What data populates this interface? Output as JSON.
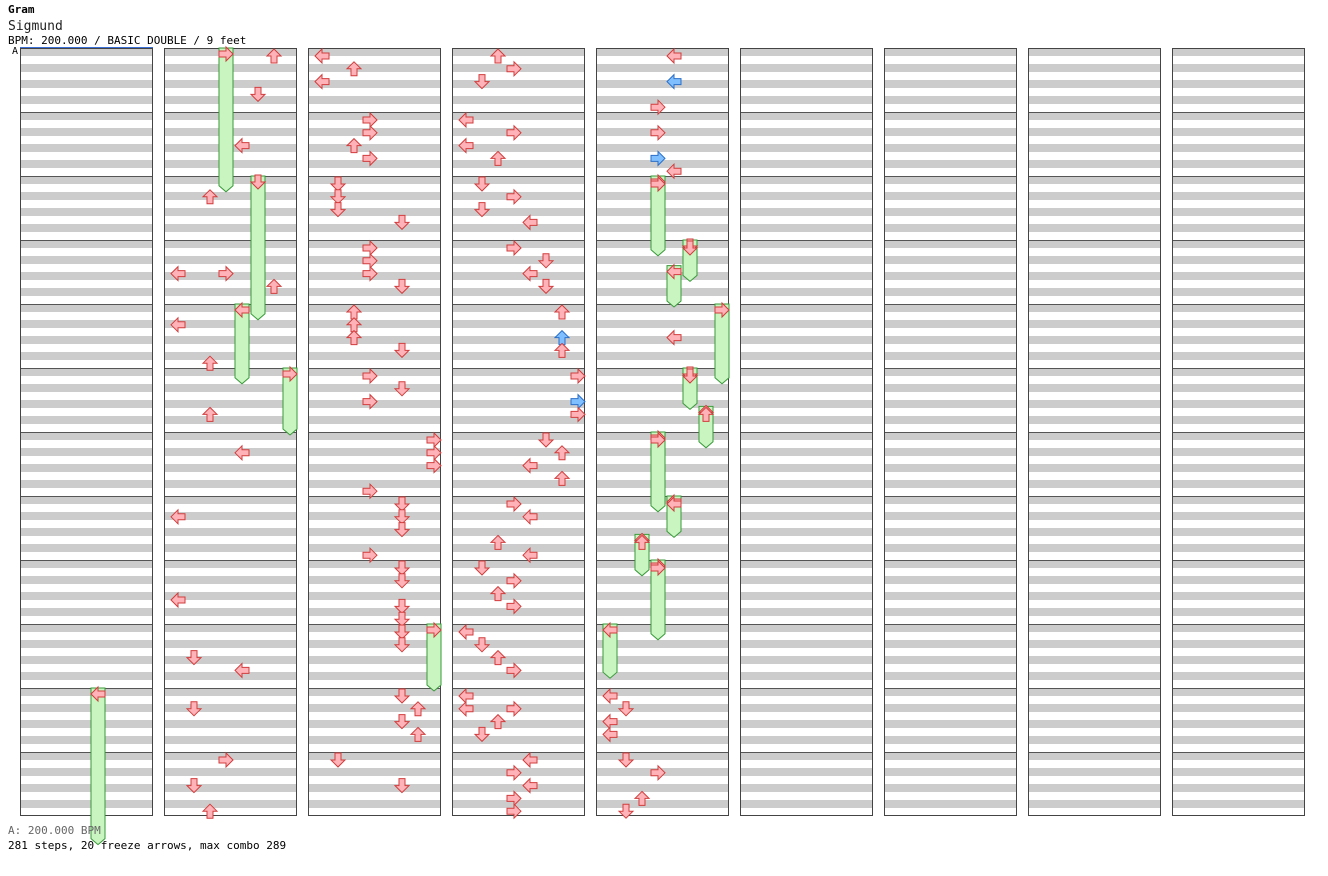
{
  "header": {
    "title": "Gram",
    "artist": "Sigmund",
    "info": "BPM: 200.000 / BASIC DOUBLE / 9 feet",
    "bpm_marker": "A"
  },
  "footer": {
    "bpm_legend": "A: 200.000 BPM",
    "stats": "281 steps, 20 freeze arrows, max combo 289"
  },
  "colors": {
    "stripe_dark": "#cccccc",
    "stripe_light": "#ffffff",
    "arrow_red": "#ffb3b8",
    "arrow_red_stroke": "#d23c3c",
    "arrow_blue": "#80bfff",
    "arrow_blue_stroke": "#2a6fc9",
    "freeze_fill": "#c8f5c0",
    "freeze_stroke": "#3a9a3a",
    "bpm_line": "#3a6fd8"
  },
  "chart_data": {
    "type": "step-chart",
    "mode": "BASIC DOUBLE",
    "bpm": 200,
    "feet": 9,
    "columns": 9,
    "measures_per_column": 12,
    "lanes": [
      "L-left",
      "L-down",
      "L-up",
      "L-right",
      "R-left",
      "R-down",
      "R-up",
      "R-right"
    ],
    "rows_per_measure": 8,
    "notes": [
      [
        1,
        3.4,
        3,
        "red"
      ],
      [
        1,
        7.2,
        0,
        "red"
      ],
      [
        1,
        8.5,
        0,
        "red"
      ],
      [
        1,
        9.4,
        1,
        "red"
      ],
      [
        1,
        9.6,
        4,
        "red"
      ],
      [
        1,
        10.2,
        1,
        "red"
      ],
      [
        1,
        11,
        3,
        "red"
      ],
      [
        1,
        11.4,
        1,
        "red"
      ],
      [
        1,
        11.8,
        2,
        "red"
      ],
      [
        1,
        0,
        6,
        "red"
      ],
      [
        1,
        0.6,
        5,
        "red"
      ],
      [
        1,
        1.4,
        4,
        "red"
      ],
      [
        1,
        2.2,
        2,
        "red"
      ],
      [
        1,
        3.4,
        0,
        "red"
      ],
      [
        1,
        3.6,
        6,
        "red"
      ],
      [
        1,
        4.2,
        0,
        "red"
      ],
      [
        1,
        4.8,
        2,
        "red"
      ],
      [
        1,
        5.6,
        2,
        "red"
      ],
      [
        1,
        6.2,
        4,
        "red"
      ],
      [
        2,
        0,
        0,
        "red"
      ],
      [
        2,
        0.2,
        2,
        "red"
      ],
      [
        2,
        0.4,
        0,
        "red"
      ],
      [
        2,
        1,
        3,
        "red"
      ],
      [
        2,
        1.2,
        3,
        "red"
      ],
      [
        2,
        1.4,
        2,
        "red"
      ],
      [
        2,
        1.6,
        3,
        "red"
      ],
      [
        2,
        2,
        1,
        "red"
      ],
      [
        2,
        2.2,
        1,
        "red"
      ],
      [
        2,
        2.4,
        1,
        "red"
      ],
      [
        2,
        2.6,
        5,
        "red"
      ],
      [
        2,
        3,
        3,
        "red"
      ],
      [
        2,
        3.2,
        3,
        "red"
      ],
      [
        2,
        3.4,
        3,
        "red"
      ],
      [
        2,
        3.6,
        5,
        "red"
      ],
      [
        2,
        4,
        2,
        "red"
      ],
      [
        2,
        4.2,
        2,
        "red"
      ],
      [
        2,
        4.4,
        2,
        "red"
      ],
      [
        2,
        4.6,
        5,
        "red"
      ],
      [
        2,
        5,
        3,
        "red"
      ],
      [
        2,
        5.2,
        5,
        "red"
      ],
      [
        2,
        5.4,
        3,
        "red"
      ],
      [
        2,
        6,
        7,
        "red"
      ],
      [
        2,
        6.2,
        7,
        "red"
      ],
      [
        2,
        6.4,
        7,
        "red"
      ],
      [
        2,
        6.8,
        3,
        "red"
      ],
      [
        2,
        7,
        5,
        "red"
      ],
      [
        2,
        7.2,
        5,
        "red"
      ],
      [
        2,
        7.4,
        5,
        "red"
      ],
      [
        2,
        7.8,
        3,
        "red"
      ],
      [
        2,
        8,
        5,
        "red"
      ],
      [
        2,
        8.2,
        5,
        "red"
      ],
      [
        2,
        8.6,
        5,
        "red"
      ],
      [
        2,
        8.8,
        5,
        "red"
      ],
      [
        2,
        9,
        5,
        "red"
      ],
      [
        2,
        9.2,
        5,
        "red"
      ],
      [
        2,
        10,
        5,
        "red"
      ],
      [
        2,
        10.2,
        6,
        "red"
      ],
      [
        2,
        10.4,
        5,
        "red"
      ],
      [
        2,
        10.6,
        6,
        "red"
      ],
      [
        2,
        11,
        1,
        "red"
      ],
      [
        2,
        11.4,
        5,
        "red"
      ],
      [
        3,
        0,
        2,
        "red"
      ],
      [
        3,
        0.2,
        3,
        "red"
      ],
      [
        3,
        0.4,
        1,
        "red"
      ],
      [
        3,
        1,
        0,
        "red"
      ],
      [
        3,
        1.2,
        3,
        "red"
      ],
      [
        3,
        1.4,
        0,
        "red"
      ],
      [
        3,
        1.6,
        2,
        "red"
      ],
      [
        3,
        2,
        1,
        "red"
      ],
      [
        3,
        2.2,
        3,
        "red"
      ],
      [
        3,
        2.4,
        1,
        "red"
      ],
      [
        3,
        2.6,
        4,
        "red"
      ],
      [
        3,
        3,
        3,
        "red"
      ],
      [
        3,
        3.2,
        5,
        "red"
      ],
      [
        3,
        3.4,
        4,
        "red"
      ],
      [
        3,
        3.6,
        5,
        "red"
      ],
      [
        3,
        4,
        6,
        "red"
      ],
      [
        3,
        4.4,
        6,
        "blue"
      ],
      [
        3,
        4.6,
        6,
        "red"
      ],
      [
        3,
        5,
        7,
        "red"
      ],
      [
        3,
        5.4,
        7,
        "blue"
      ],
      [
        3,
        5.6,
        7,
        "red"
      ],
      [
        3,
        6,
        5,
        "red"
      ],
      [
        3,
        6.2,
        6,
        "red"
      ],
      [
        3,
        6.4,
        4,
        "red"
      ],
      [
        3,
        6.6,
        6,
        "red"
      ],
      [
        3,
        7,
        3,
        "red"
      ],
      [
        3,
        7.2,
        4,
        "red"
      ],
      [
        3,
        7.6,
        2,
        "red"
      ],
      [
        3,
        7.8,
        4,
        "red"
      ],
      [
        3,
        8,
        1,
        "red"
      ],
      [
        3,
        8.2,
        3,
        "red"
      ],
      [
        3,
        8.4,
        2,
        "red"
      ],
      [
        3,
        8.6,
        3,
        "red"
      ],
      [
        3,
        9,
        0,
        "red"
      ],
      [
        3,
        9.2,
        1,
        "red"
      ],
      [
        3,
        9.4,
        2,
        "red"
      ],
      [
        3,
        9.6,
        3,
        "red"
      ],
      [
        3,
        10,
        0,
        "red"
      ],
      [
        3,
        10.2,
        3,
        "red"
      ],
      [
        3,
        10.2,
        0,
        "red"
      ],
      [
        3,
        10.4,
        2,
        "red"
      ],
      [
        3,
        10.6,
        1,
        "red"
      ],
      [
        3,
        11,
        4,
        "red"
      ],
      [
        3,
        11.2,
        3,
        "red"
      ],
      [
        3,
        11.4,
        4,
        "red"
      ],
      [
        3,
        11.6,
        3,
        "red"
      ],
      [
        3,
        11.8,
        3,
        "red"
      ],
      [
        4,
        0,
        4,
        "red"
      ],
      [
        4,
        0.4,
        4,
        "blue"
      ],
      [
        4,
        0.8,
        3,
        "red"
      ],
      [
        4,
        1.2,
        3,
        "red"
      ],
      [
        4,
        1.6,
        3,
        "blue"
      ],
      [
        4,
        1.8,
        4,
        "red"
      ],
      [
        4,
        2,
        3,
        "red"
      ],
      [
        4,
        3,
        5,
        "red"
      ],
      [
        4,
        4.4,
        4,
        "red"
      ],
      [
        4,
        5,
        5,
        "red"
      ],
      [
        4,
        5.6,
        6,
        "red"
      ],
      [
        4,
        6,
        3,
        "red"
      ],
      [
        4,
        7,
        4,
        "red"
      ],
      [
        4,
        7.6,
        2,
        "red"
      ],
      [
        4,
        8,
        3,
        "red"
      ],
      [
        4,
        10,
        0,
        "red"
      ],
      [
        4,
        10.2,
        1,
        "red"
      ],
      [
        4,
        10.4,
        0,
        "red"
      ],
      [
        4,
        10.6,
        0,
        "red"
      ],
      [
        4,
        11,
        1,
        "red"
      ],
      [
        4,
        11.2,
        3,
        "red"
      ],
      [
        4,
        11.6,
        2,
        "red"
      ],
      [
        4,
        11.8,
        1,
        "red"
      ]
    ],
    "freezes": [
      [
        1,
        0,
        3,
        2.2
      ],
      [
        1,
        2,
        5,
        2.2
      ],
      [
        1,
        4,
        4,
        1.2
      ],
      [
        1,
        5,
        7,
        1
      ],
      [
        0,
        10,
        4,
        2.4
      ],
      [
        2,
        9,
        7,
        1
      ],
      [
        4,
        2,
        3,
        1.2
      ],
      [
        4,
        3,
        5,
        0.6
      ],
      [
        4,
        3.4,
        4,
        0.6
      ],
      [
        4,
        4,
        7,
        1.2
      ],
      [
        4,
        5,
        5,
        0.6
      ],
      [
        4,
        5.6,
        6,
        0.6
      ],
      [
        4,
        6,
        3,
        1.2
      ],
      [
        4,
        7,
        4,
        0.6
      ],
      [
        4,
        7.6,
        2,
        0.6
      ],
      [
        4,
        8,
        3,
        1.2
      ],
      [
        4,
        9,
        0,
        0.8
      ]
    ]
  }
}
